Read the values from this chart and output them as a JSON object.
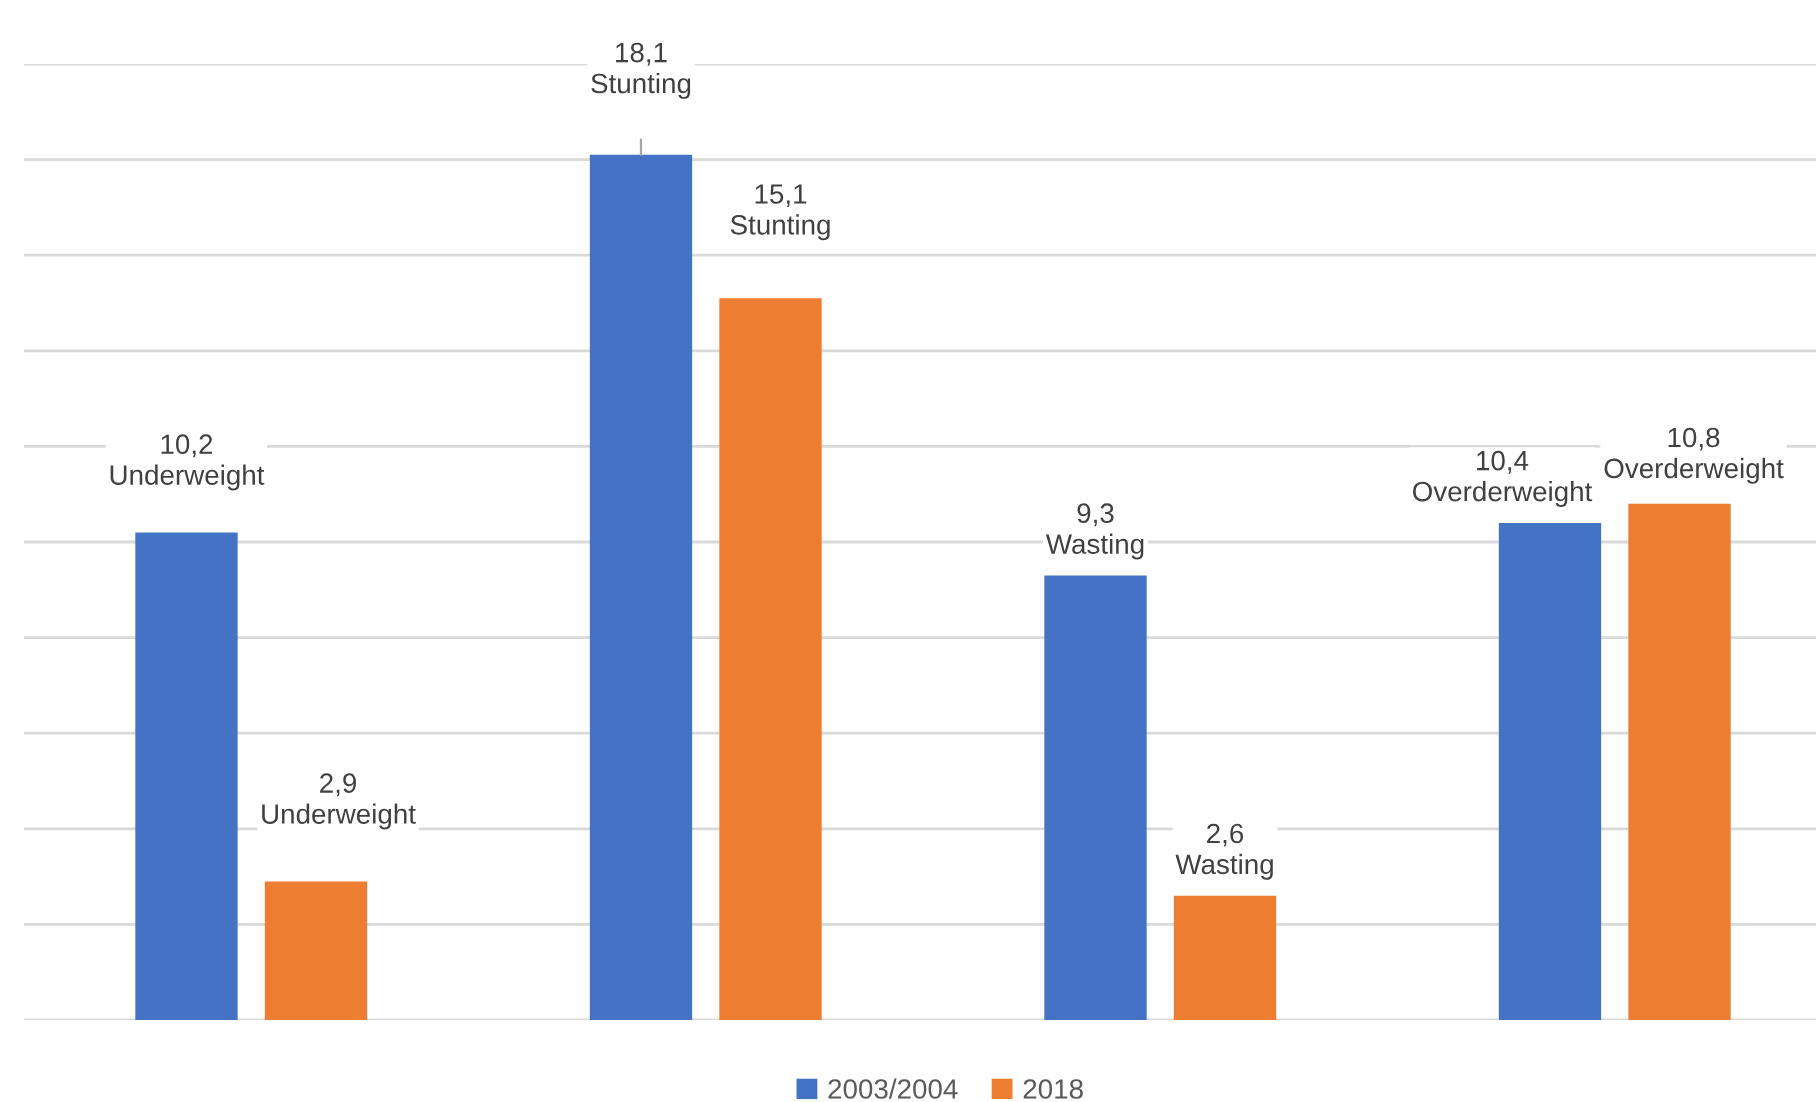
{
  "chart_data": {
    "type": "bar",
    "categories": [
      null,
      null,
      null,
      null
    ],
    "series": [
      {
        "name": "2003/2004",
        "color": "#4472c4",
        "values": [
          10.2,
          18.1,
          9.3,
          10.4
        ],
        "value_labels": [
          "10,2\nUnderweight",
          "18,1\nStunting",
          "9,3\nWasting",
          "10,4\nOverderweight"
        ]
      },
      {
        "name": "2018",
        "color": "#ed7d31",
        "values": [
          2.9,
          15.1,
          2.6,
          10.8
        ],
        "value_labels": [
          "2,9\nUnderweight",
          "15,1\nStunting",
          "2,6\nWasting",
          "10,8\nOverderweight"
        ]
      }
    ],
    "ylim": [
      0,
      20
    ],
    "yticks": [
      {
        "value": 0,
        "label": null
      },
      {
        "value": 2,
        "label": null
      },
      {
        "value": 4,
        "label": null
      },
      {
        "value": 6,
        "label": null
      },
      {
        "value": 8,
        "label": null
      },
      {
        "value": 10,
        "label": null
      },
      {
        "value": 12,
        "label": null
      },
      {
        "value": 14,
        "label": null
      },
      {
        "value": 16,
        "label": null
      },
      {
        "value": 18,
        "label": null
      },
      {
        "value": 20,
        "label": null
      }
    ],
    "grid": "y",
    "legend": "bottom"
  }
}
